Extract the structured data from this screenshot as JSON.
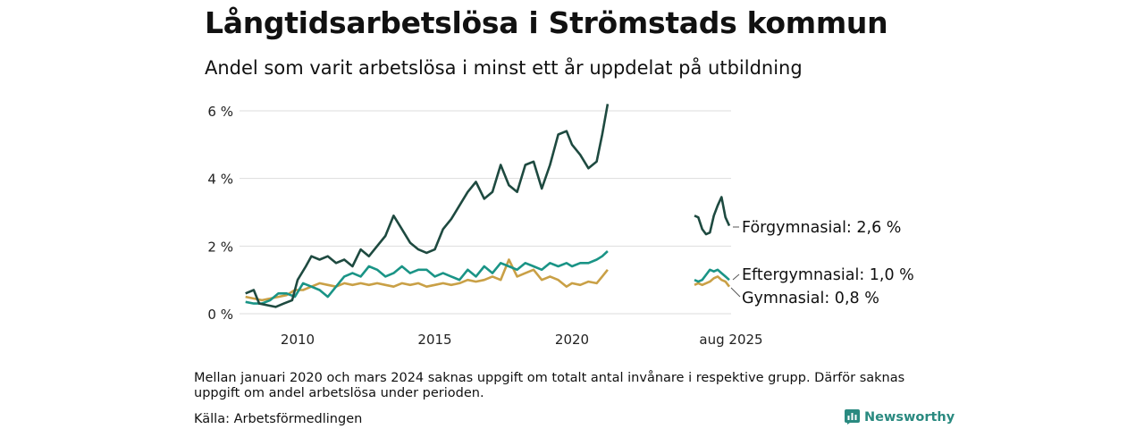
{
  "header": {
    "title": "Långtidsarbetslösa i Strömstads kommun",
    "subtitle": "Andel som varit arbetslösa i minst ett år uppdelat på utbildning"
  },
  "footer": {
    "note": "Mellan januari 2020 och mars 2024 saknas uppgift om totalt antal invånare i respektive grupp. Därför saknas uppgift om andel arbetslösa under perioden.",
    "source": "Källa: Arbetsförmedlingen",
    "brand": "Newsworthy"
  },
  "colors": {
    "forgymnasial": "#1e4a40",
    "eftergymnasial": "#1a9486",
    "gymnasial": "#c9a046",
    "grid": "#dddddd",
    "brand": "#2a8a80"
  },
  "chart_data": {
    "type": "line",
    "ylim": [
      0,
      6.6
    ],
    "y_ticks": [
      0,
      2,
      4,
      6
    ],
    "y_tick_labels": [
      "0 %",
      "2 %",
      "4 %",
      "6 %"
    ],
    "x_ticks": [
      2010,
      2015,
      2020
    ],
    "x_tick_labels": [
      "2010",
      "2015",
      "2020"
    ],
    "x_gap_label": "aug 2025",
    "legend": "end-labels",
    "series": [
      {
        "key": "forgymnasial",
        "label": "Förgymnasial: 2,6 %",
        "values": [
          [
            2008.1,
            0.6
          ],
          [
            2008.4,
            0.7
          ],
          [
            2008.6,
            0.3
          ],
          [
            2008.9,
            0.25
          ],
          [
            2009.2,
            0.2
          ],
          [
            2009.5,
            0.3
          ],
          [
            2009.8,
            0.4
          ],
          [
            2010.0,
            1.0
          ],
          [
            2010.3,
            1.4
          ],
          [
            2010.5,
            1.7
          ],
          [
            2010.8,
            1.6
          ],
          [
            2011.1,
            1.7
          ],
          [
            2011.4,
            1.5
          ],
          [
            2011.7,
            1.6
          ],
          [
            2012.0,
            1.4
          ],
          [
            2012.3,
            1.9
          ],
          [
            2012.6,
            1.7
          ],
          [
            2012.9,
            2.0
          ],
          [
            2013.2,
            2.3
          ],
          [
            2013.5,
            2.9
          ],
          [
            2013.8,
            2.5
          ],
          [
            2014.1,
            2.1
          ],
          [
            2014.4,
            1.9
          ],
          [
            2014.7,
            1.8
          ],
          [
            2015.0,
            1.9
          ],
          [
            2015.3,
            2.5
          ],
          [
            2015.6,
            2.8
          ],
          [
            2015.9,
            3.2
          ],
          [
            2016.2,
            3.6
          ],
          [
            2016.5,
            3.9
          ],
          [
            2016.8,
            3.4
          ],
          [
            2017.1,
            3.6
          ],
          [
            2017.4,
            4.4
          ],
          [
            2017.7,
            3.8
          ],
          [
            2018.0,
            3.6
          ],
          [
            2018.3,
            4.4
          ],
          [
            2018.6,
            4.5
          ],
          [
            2018.9,
            3.7
          ],
          [
            2019.2,
            4.4
          ],
          [
            2019.5,
            5.3
          ],
          [
            2019.8,
            5.4
          ],
          [
            2020.0,
            5.0
          ],
          [
            2020.3,
            4.7
          ],
          [
            2020.6,
            4.3
          ],
          [
            2020.9,
            4.5
          ],
          [
            2021.1,
            5.3
          ],
          [
            2021.3,
            6.2
          ]
        ]
      },
      {
        "key": "eftergymnasial",
        "label": "Eftergymnasial: 1,0 %",
        "values": [
          [
            2008.1,
            0.35
          ],
          [
            2008.4,
            0.3
          ],
          [
            2008.7,
            0.3
          ],
          [
            2009.0,
            0.4
          ],
          [
            2009.3,
            0.6
          ],
          [
            2009.6,
            0.6
          ],
          [
            2009.9,
            0.5
          ],
          [
            2010.2,
            0.9
          ],
          [
            2010.5,
            0.8
          ],
          [
            2010.8,
            0.7
          ],
          [
            2011.1,
            0.5
          ],
          [
            2011.4,
            0.8
          ],
          [
            2011.7,
            1.1
          ],
          [
            2012.0,
            1.2
          ],
          [
            2012.3,
            1.1
          ],
          [
            2012.6,
            1.4
          ],
          [
            2012.9,
            1.3
          ],
          [
            2013.2,
            1.1
          ],
          [
            2013.5,
            1.2
          ],
          [
            2013.8,
            1.4
          ],
          [
            2014.1,
            1.2
          ],
          [
            2014.4,
            1.3
          ],
          [
            2014.7,
            1.3
          ],
          [
            2015.0,
            1.1
          ],
          [
            2015.3,
            1.2
          ],
          [
            2015.6,
            1.1
          ],
          [
            2015.9,
            1.0
          ],
          [
            2016.2,
            1.3
          ],
          [
            2016.5,
            1.1
          ],
          [
            2016.8,
            1.4
          ],
          [
            2017.1,
            1.2
          ],
          [
            2017.4,
            1.5
          ],
          [
            2017.7,
            1.4
          ],
          [
            2018.0,
            1.3
          ],
          [
            2018.3,
            1.5
          ],
          [
            2018.6,
            1.4
          ],
          [
            2018.9,
            1.3
          ],
          [
            2019.2,
            1.5
          ],
          [
            2019.5,
            1.4
          ],
          [
            2019.8,
            1.5
          ],
          [
            2020.0,
            1.4
          ],
          [
            2020.3,
            1.5
          ],
          [
            2020.6,
            1.5
          ],
          [
            2020.9,
            1.6
          ],
          [
            2021.1,
            1.7
          ],
          [
            2021.3,
            1.85
          ]
        ]
      },
      {
        "key": "gymnasial",
        "label": "Gymnasial: 0,8 %",
        "values": [
          [
            2008.1,
            0.5
          ],
          [
            2008.4,
            0.45
          ],
          [
            2008.7,
            0.4
          ],
          [
            2009.0,
            0.45
          ],
          [
            2009.3,
            0.5
          ],
          [
            2009.6,
            0.55
          ],
          [
            2009.9,
            0.7
          ],
          [
            2010.2,
            0.7
          ],
          [
            2010.5,
            0.8
          ],
          [
            2010.8,
            0.9
          ],
          [
            2011.1,
            0.85
          ],
          [
            2011.4,
            0.8
          ],
          [
            2011.7,
            0.9
          ],
          [
            2012.0,
            0.85
          ],
          [
            2012.3,
            0.9
          ],
          [
            2012.6,
            0.85
          ],
          [
            2012.9,
            0.9
          ],
          [
            2013.2,
            0.85
          ],
          [
            2013.5,
            0.8
          ],
          [
            2013.8,
            0.9
          ],
          [
            2014.1,
            0.85
          ],
          [
            2014.4,
            0.9
          ],
          [
            2014.7,
            0.8
          ],
          [
            2015.0,
            0.85
          ],
          [
            2015.3,
            0.9
          ],
          [
            2015.6,
            0.85
          ],
          [
            2015.9,
            0.9
          ],
          [
            2016.2,
            1.0
          ],
          [
            2016.5,
            0.95
          ],
          [
            2016.8,
            1.0
          ],
          [
            2017.1,
            1.1
          ],
          [
            2017.4,
            1.0
          ],
          [
            2017.7,
            1.6
          ],
          [
            2018.0,
            1.1
          ],
          [
            2018.3,
            1.2
          ],
          [
            2018.6,
            1.3
          ],
          [
            2018.9,
            1.0
          ],
          [
            2019.2,
            1.1
          ],
          [
            2019.5,
            1.0
          ],
          [
            2019.8,
            0.8
          ],
          [
            2020.0,
            0.9
          ],
          [
            2020.3,
            0.85
          ],
          [
            2020.6,
            0.95
          ],
          [
            2020.9,
            0.9
          ],
          [
            2021.1,
            1.1
          ],
          [
            2021.3,
            1.3
          ]
        ]
      }
    ],
    "recent_series": [
      {
        "key": "forgymnasial",
        "values": [
          [
            2024.25,
            2.9
          ],
          [
            2024.4,
            2.85
          ],
          [
            2024.55,
            2.5
          ],
          [
            2024.7,
            2.35
          ],
          [
            2024.85,
            2.4
          ],
          [
            2025.0,
            2.9
          ],
          [
            2025.15,
            3.2
          ],
          [
            2025.3,
            3.45
          ],
          [
            2025.45,
            2.85
          ],
          [
            2025.6,
            2.6
          ]
        ]
      },
      {
        "key": "eftergymnasial",
        "values": [
          [
            2024.25,
            1.0
          ],
          [
            2024.4,
            0.95
          ],
          [
            2024.55,
            1.0
          ],
          [
            2024.7,
            1.15
          ],
          [
            2024.85,
            1.3
          ],
          [
            2025.0,
            1.25
          ],
          [
            2025.15,
            1.3
          ],
          [
            2025.3,
            1.2
          ],
          [
            2025.45,
            1.1
          ],
          [
            2025.6,
            1.0
          ]
        ]
      },
      {
        "key": "gymnasial",
        "values": [
          [
            2024.25,
            0.85
          ],
          [
            2024.4,
            0.9
          ],
          [
            2024.55,
            0.85
          ],
          [
            2024.7,
            0.9
          ],
          [
            2024.85,
            0.95
          ],
          [
            2025.0,
            1.05
          ],
          [
            2025.15,
            1.1
          ],
          [
            2025.3,
            1.0
          ],
          [
            2025.45,
            0.95
          ],
          [
            2025.6,
            0.8
          ]
        ]
      }
    ]
  }
}
